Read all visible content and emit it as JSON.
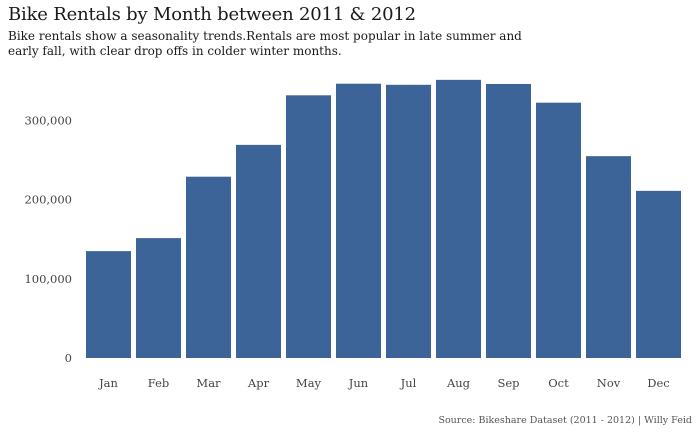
{
  "title": "Bike Rentals by Month between 2011 & 2012",
  "subtitle": "Bike rentals show a seasonality trends.Rentals are most popular in late summer and early fall, with clear drop offs in colder winter months.",
  "caption": "Source: Bikeshare Dataset (2011 - 2012) | Willy Feid",
  "colors": {
    "bar": "#3d6498",
    "text": "#1a1a1a",
    "tick": "#444444"
  },
  "chart_data": {
    "type": "bar",
    "categories": [
      "Jan",
      "Feb",
      "Mar",
      "Apr",
      "May",
      "Jun",
      "Jul",
      "Aug",
      "Sep",
      "Oct",
      "Nov",
      "Dec"
    ],
    "values": [
      134933,
      151352,
      228920,
      269094,
      331686,
      346342,
      344948,
      351194,
      345991,
      322352,
      254831,
      211036
    ],
    "y_ticks": [
      0,
      100000,
      200000,
      300000
    ],
    "y_tick_labels": [
      "0",
      "100,000",
      "200,000",
      "300,000"
    ],
    "ylim": [
      0,
      360000
    ],
    "xlabel": "",
    "ylabel": "",
    "grid": false,
    "legend": "none"
  }
}
